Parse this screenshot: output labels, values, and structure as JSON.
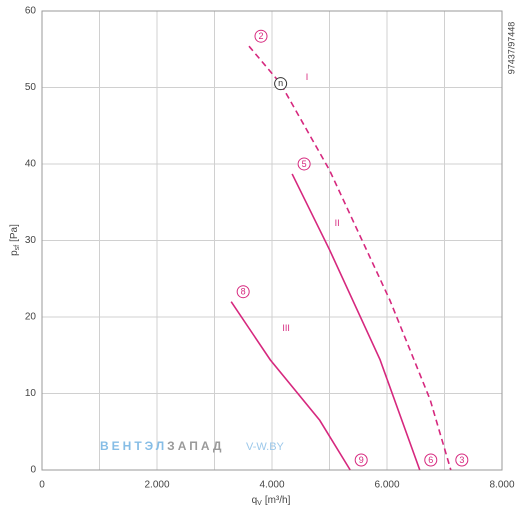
{
  "chart_data": {
    "type": "line",
    "x_label": {
      "symbol": "q",
      "subscript": "V",
      "unit": "[m³/h]"
    },
    "y_label": {
      "symbol": "p",
      "subscript": "sf",
      "unit": "[Pa]"
    },
    "side_note": "97437/97448",
    "watermark": {
      "part1": "ВЕНТЭЛ",
      "part2": "ЗАПАД",
      "site": "V-W.BY"
    },
    "xlim": [
      0,
      8000
    ],
    "ylim": [
      0,
      60
    ],
    "xticks": [
      {
        "value": 0,
        "label": "0"
      },
      {
        "value": 2000,
        "label": "2.000"
      },
      {
        "value": 4000,
        "label": "4.000"
      },
      {
        "value": 6000,
        "label": "6.000"
      },
      {
        "value": 8000,
        "label": "8.000"
      }
    ],
    "x_minor_grid": [
      1000,
      3000,
      5000,
      7000
    ],
    "yticks": [
      0,
      10,
      20,
      30,
      40,
      50,
      60
    ],
    "grid": true,
    "series": [
      {
        "name": "I",
        "color": "#d6287e",
        "dashed": true,
        "start_label": "2",
        "end_label": "3",
        "x": [
          3600,
          4150,
          5000,
          6050,
          6750,
          7110
        ],
        "values": [
          55.4,
          50.5,
          39.2,
          22.2,
          9.2,
          0
        ],
        "point_label": "n",
        "point_index": 1
      },
      {
        "name": "II",
        "color": "#d6287e",
        "dashed": false,
        "start_label": "5",
        "end_label": "6",
        "x": [
          4350,
          5000,
          5880,
          6570
        ],
        "values": [
          38.7,
          28.8,
          14.4,
          0
        ]
      },
      {
        "name": "III",
        "color": "#d6287e",
        "dashed": false,
        "start_label": "8",
        "end_label": "9",
        "x": [
          3290,
          3970,
          4830,
          5360
        ],
        "values": [
          22,
          14.4,
          6.5,
          0
        ]
      }
    ]
  }
}
